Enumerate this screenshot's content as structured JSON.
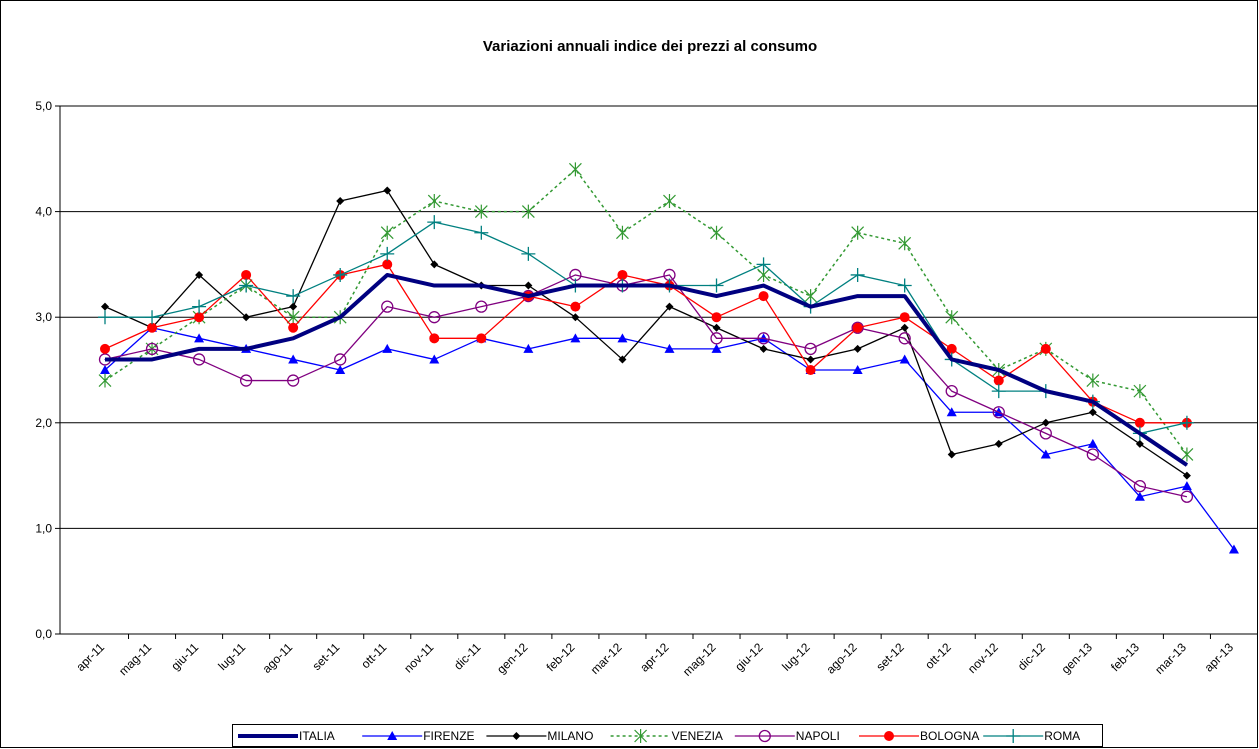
{
  "chart_data": {
    "type": "line",
    "title": "Variazioni annuali indice dei prezzi al consumo",
    "categories": [
      "apr-11",
      "mag-11",
      "giu-11",
      "lug-11",
      "ago-11",
      "set-11",
      "ott-11",
      "nov-11",
      "dic-11",
      "gen-12",
      "feb-12",
      "mar-12",
      "apr-12",
      "mag-12",
      "giu-12",
      "lug-12",
      "ago-12",
      "set-12",
      "ott-12",
      "nov-12",
      "dic-12",
      "gen-13",
      "feb-13",
      "mar-13",
      "apr-13"
    ],
    "ylim": [
      0,
      5
    ],
    "yticks": [
      {
        "value": 0,
        "label": "0,0"
      },
      {
        "value": 1,
        "label": "1,0"
      },
      {
        "value": 2,
        "label": "2,0"
      },
      {
        "value": 3,
        "label": "3,0"
      },
      {
        "value": 4,
        "label": "4,0"
      },
      {
        "value": 5,
        "label": "5,0"
      }
    ],
    "grid": true,
    "legend": "bottom",
    "series": [
      {
        "name": "ITALIA",
        "color": "#000080",
        "marker": "none",
        "dash": false,
        "width": 4,
        "values": [
          2.6,
          2.6,
          2.7,
          2.7,
          2.8,
          3.0,
          3.4,
          3.3,
          3.3,
          3.2,
          3.3,
          3.3,
          3.3,
          3.2,
          3.3,
          3.1,
          3.2,
          3.2,
          2.6,
          2.5,
          2.3,
          2.2,
          1.9,
          1.6,
          null
        ]
      },
      {
        "name": "FIRENZE",
        "color": "#0000ff",
        "marker": "triangle",
        "dash": false,
        "width": 1.3,
        "values": [
          2.5,
          2.9,
          2.8,
          2.7,
          2.6,
          2.5,
          2.7,
          2.6,
          2.8,
          2.7,
          2.8,
          2.8,
          2.7,
          2.7,
          2.8,
          2.5,
          2.5,
          2.6,
          2.1,
          2.1,
          1.7,
          1.8,
          1.3,
          1.4,
          0.8
        ]
      },
      {
        "name": "MILANO",
        "color": "#000000",
        "marker": "diamond",
        "dash": false,
        "width": 1.3,
        "values": [
          3.1,
          2.9,
          3.4,
          3.0,
          3.1,
          4.1,
          4.2,
          3.5,
          3.3,
          3.3,
          3.0,
          2.6,
          3.1,
          2.9,
          2.7,
          2.6,
          2.7,
          2.9,
          1.7,
          1.8,
          2.0,
          2.1,
          1.8,
          1.5,
          null
        ]
      },
      {
        "name": "VENEZIA",
        "color": "#339933",
        "marker": "asterisk",
        "dash": true,
        "width": 1.5,
        "values": [
          2.4,
          2.7,
          3.0,
          3.3,
          3.0,
          3.0,
          3.8,
          4.1,
          4.0,
          4.0,
          4.4,
          3.8,
          4.1,
          3.8,
          3.4,
          3.2,
          3.8,
          3.7,
          3.0,
          2.5,
          2.7,
          2.4,
          2.3,
          1.7,
          null
        ]
      },
      {
        "name": "NAPOLI",
        "color": "#800080",
        "marker": "circle-open",
        "dash": false,
        "width": 1.3,
        "values": [
          2.6,
          2.7,
          2.6,
          2.4,
          2.4,
          2.6,
          3.1,
          3.0,
          3.1,
          3.2,
          3.4,
          3.3,
          3.4,
          2.8,
          2.8,
          2.7,
          2.9,
          2.8,
          2.3,
          2.1,
          1.9,
          1.7,
          1.4,
          1.3,
          null
        ]
      },
      {
        "name": "BOLOGNA",
        "color": "#ff0000",
        "marker": "circle",
        "dash": false,
        "width": 1.3,
        "values": [
          2.7,
          2.9,
          3.0,
          3.4,
          2.9,
          3.4,
          3.5,
          2.8,
          2.8,
          3.2,
          3.1,
          3.4,
          3.3,
          3.0,
          3.2,
          2.5,
          2.9,
          3.0,
          2.7,
          2.4,
          2.7,
          2.2,
          2.0,
          2.0,
          null
        ]
      },
      {
        "name": "ROMA",
        "color": "#008080",
        "marker": "plus",
        "dash": false,
        "width": 1.3,
        "values": [
          3.0,
          3.0,
          3.1,
          3.3,
          3.2,
          3.4,
          3.6,
          3.9,
          3.8,
          3.6,
          3.3,
          3.3,
          3.3,
          3.3,
          3.5,
          3.1,
          3.4,
          3.3,
          2.6,
          2.3,
          2.3,
          2.2,
          1.9,
          2.0,
          null
        ]
      }
    ]
  }
}
